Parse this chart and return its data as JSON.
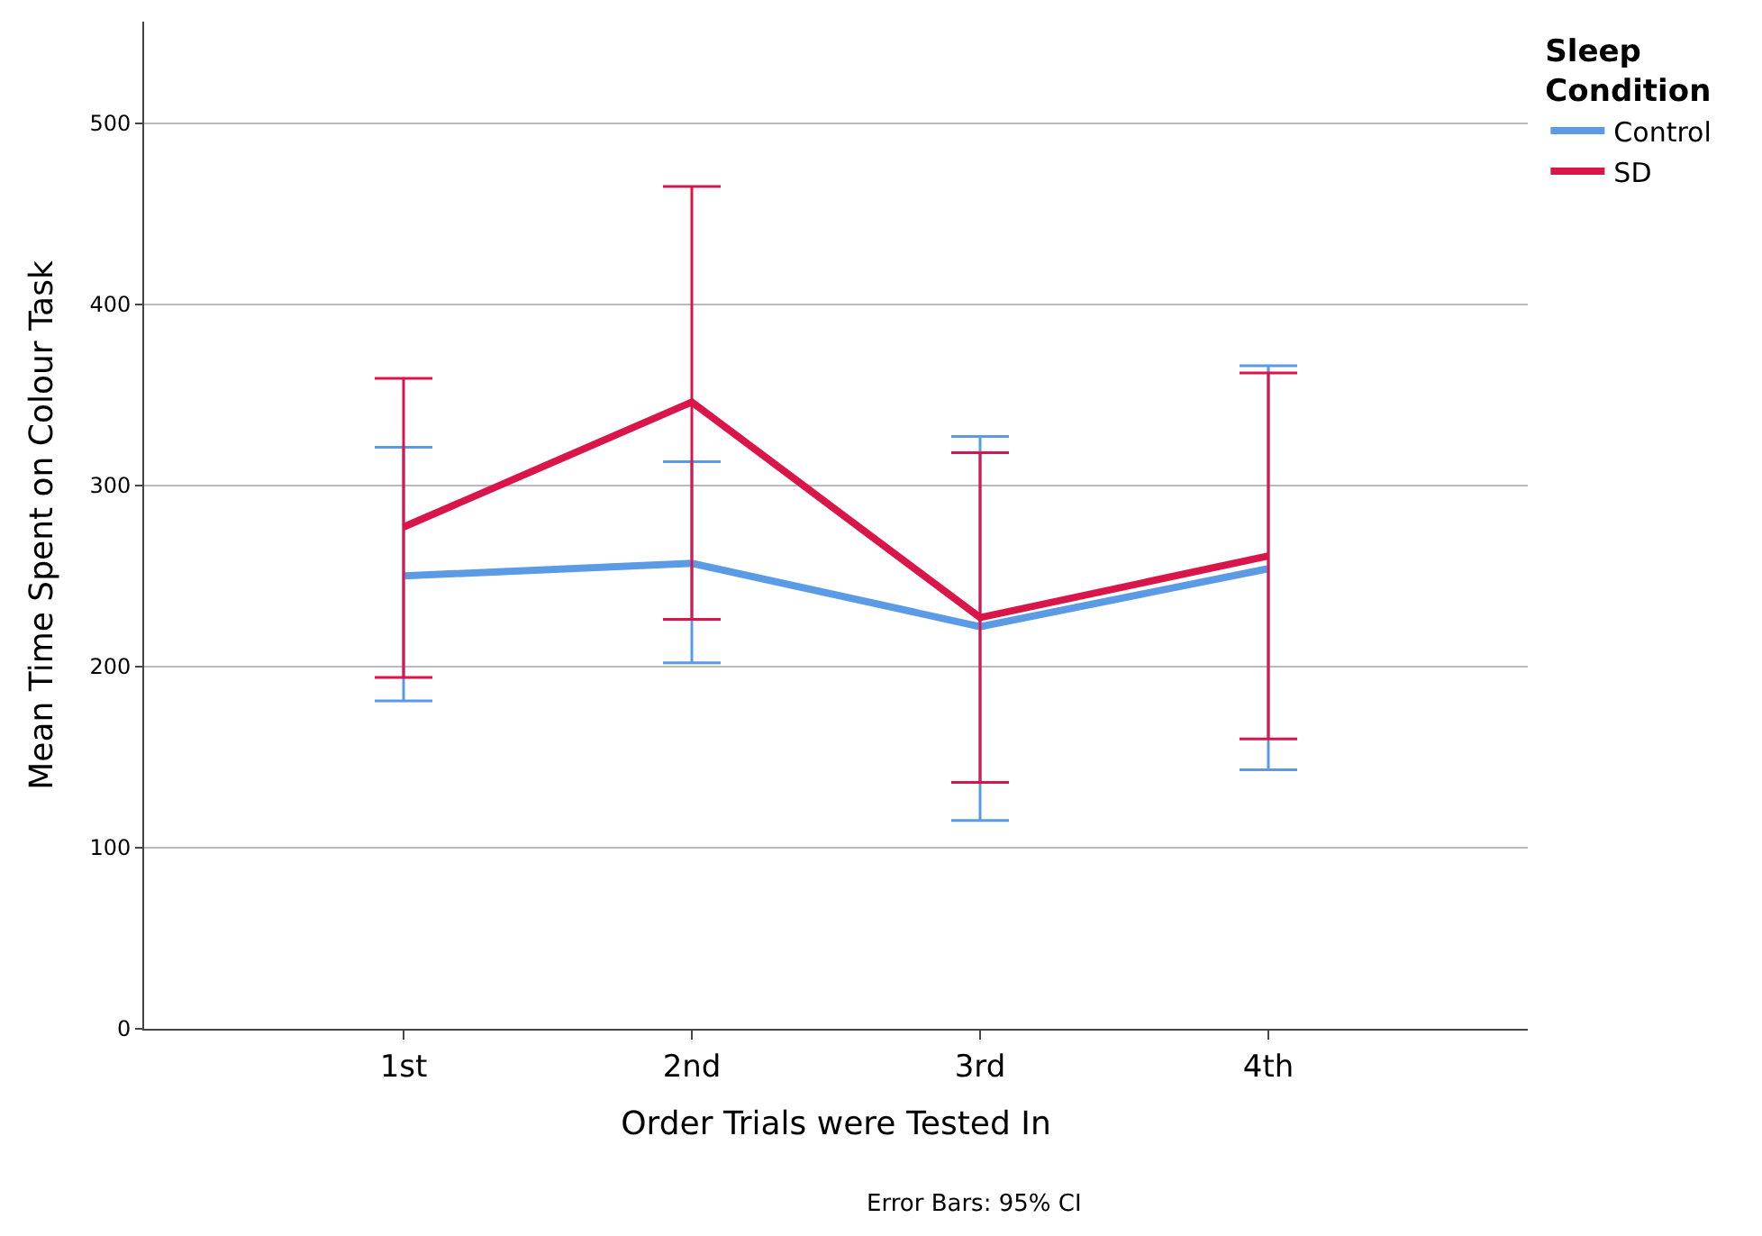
{
  "chart_data": {
    "type": "line",
    "xlabel": "Order Trials were Tested In",
    "ylabel": "Mean Time Spent on Colour Task",
    "legend_title": "Sleep Condition",
    "categories": [
      "1st",
      "2nd",
      "3rd",
      "4th"
    ],
    "series": [
      {
        "name": "Control",
        "color": "#5b9be6",
        "values": [
          250,
          257,
          222,
          254
        ],
        "errors": [
          [
            181,
            321
          ],
          [
            202,
            313
          ],
          [
            115,
            327
          ],
          [
            143,
            366
          ]
        ]
      },
      {
        "name": "SD",
        "color": "#d9154a",
        "values": [
          277,
          346,
          227,
          261
        ],
        "errors": [
          [
            194,
            359
          ],
          [
            226,
            465
          ],
          [
            136,
            318
          ],
          [
            160,
            362
          ]
        ]
      }
    ],
    "ylim": [
      0,
      556
    ],
    "yticks": [
      0,
      100,
      200,
      300,
      400,
      500
    ],
    "grid": "y",
    "legend": "top right",
    "marker": "none",
    "annotations": [
      "Error Bars: 95% CI"
    ]
  }
}
